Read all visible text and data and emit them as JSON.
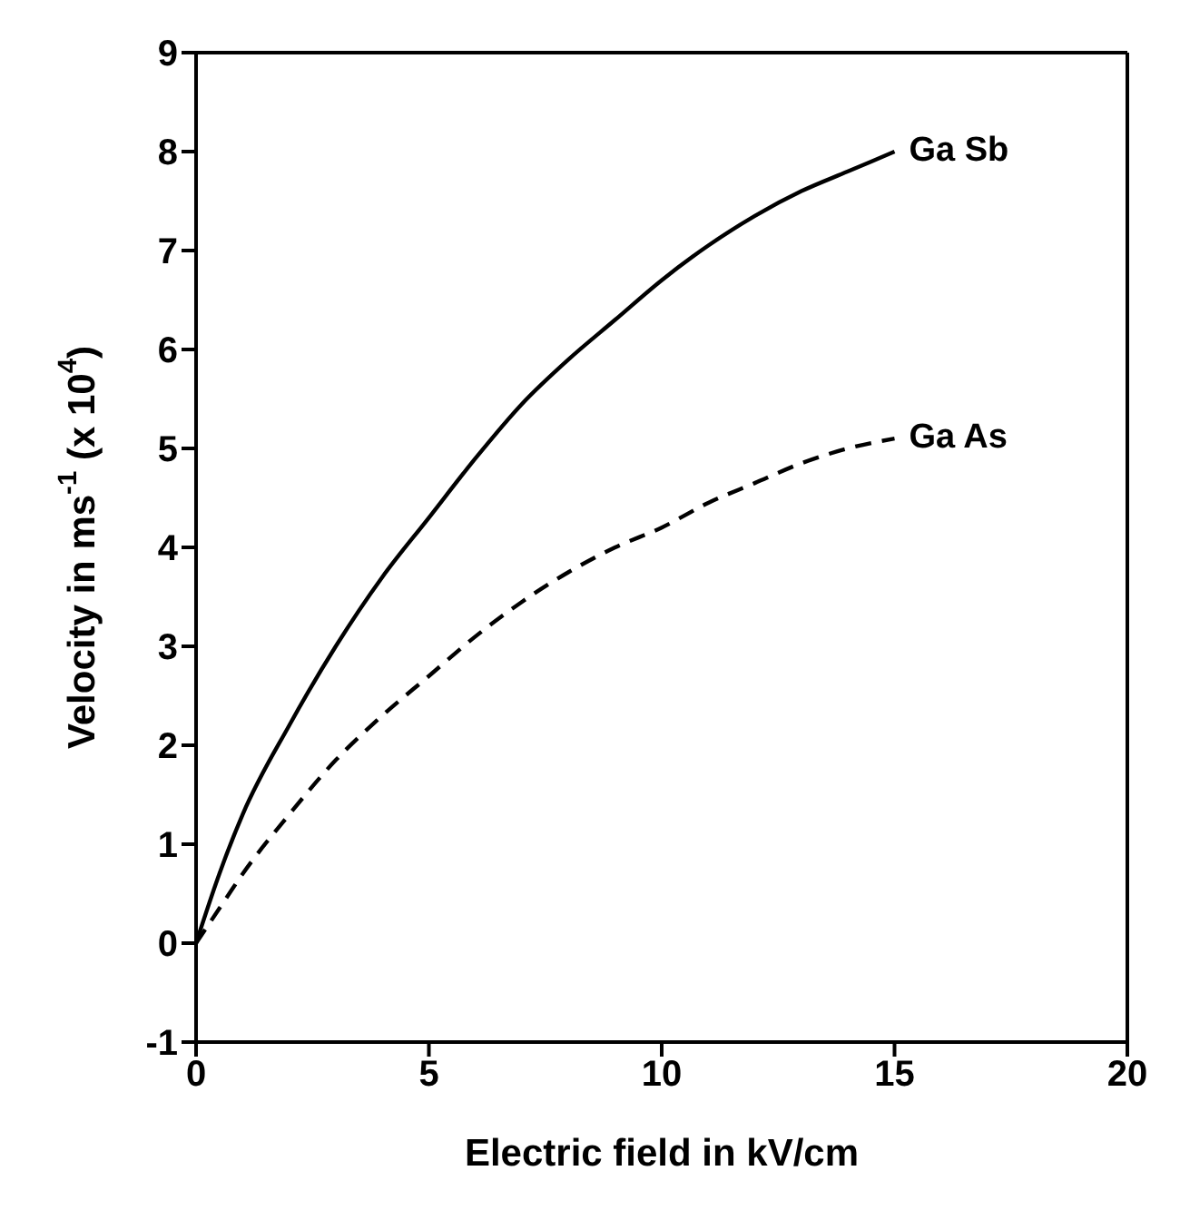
{
  "chart_data": {
    "type": "line",
    "xlabel": "Electric field in kV/cm",
    "ylabel": "Velocity in ms$^{-1}$ (x 10$^{4}$)",
    "xlim": [
      0,
      20
    ],
    "xticks": [
      0,
      5,
      10,
      15,
      20
    ],
    "ylim": [
      -1,
      9
    ],
    "yticks": [
      -1,
      0,
      1,
      2,
      3,
      4,
      5,
      6,
      7,
      8,
      9
    ],
    "legend": false,
    "marker": "none",
    "series": [
      {
        "name": "Ga Sb",
        "color": "#000000",
        "line_style": "solid",
        "x": [
          0,
          0.5,
          1,
          2,
          3,
          4,
          5,
          6,
          7,
          8,
          9,
          10,
          11,
          12,
          13,
          14,
          15
        ],
        "values": [
          0,
          0.7,
          1.3,
          2.2,
          3.0,
          3.7,
          4.3,
          4.9,
          5.45,
          5.9,
          6.3,
          6.7,
          7.05,
          7.35,
          7.6,
          7.8,
          8.0
        ]
      },
      {
        "name": "Ga As",
        "color": "#000000",
        "line_style": "dashed",
        "x": [
          0,
          0.5,
          1,
          2,
          3,
          4,
          5,
          6,
          7,
          8,
          9,
          10,
          11,
          12,
          13,
          14,
          15
        ],
        "values": [
          0,
          0.35,
          0.7,
          1.3,
          1.85,
          2.3,
          2.7,
          3.1,
          3.45,
          3.75,
          4.0,
          4.2,
          4.45,
          4.65,
          4.85,
          5.0,
          5.1
        ]
      }
    ]
  }
}
